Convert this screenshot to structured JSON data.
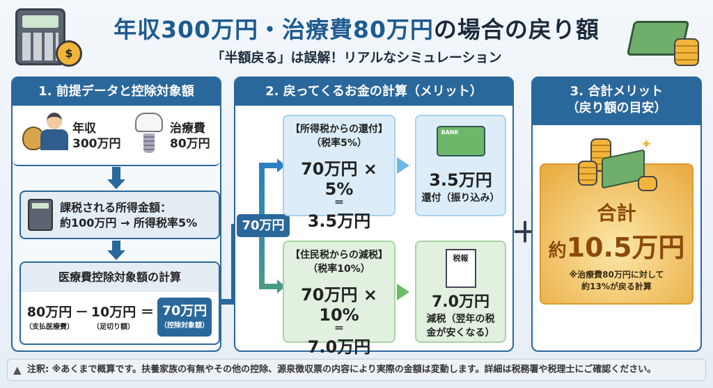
{
  "header": {
    "title_main": "年収300万円・治療費80万円",
    "title_tail": "の場合の戻り額",
    "subtitle": "「半額戻る」は誤解！リアルなシミュレーション"
  },
  "colors": {
    "primary": "#2a679b",
    "title": "#1e5b8f",
    "blue_box": "#dcedf9",
    "green_box": "#e1f0df",
    "gold": "#e8a93c"
  },
  "panel1": {
    "title": "1. 前提データと控除対象額",
    "income_label": "年収",
    "income_value": "300万円",
    "treatment_label": "治療費",
    "treatment_value": "80万円",
    "taxable_line1": "課税される所得金額：",
    "taxable_line2": "約100万円 → 所得税率5%",
    "calc_title": "医療費控除対象額の計算",
    "paid": "80万円",
    "paid_note": "（支払医療費）",
    "minus": "－",
    "threshold": "10万円",
    "threshold_note": "（足切り額）",
    "equals": "＝",
    "result": "70万円",
    "result_note": "（控除対象額）"
  },
  "panel2": {
    "title": "2. 戻ってくるお金の計算（メリット）",
    "badge": "70万円",
    "income_tax": {
      "title": "【所得税からの還付】",
      "rate": "（税率5%）",
      "formula": "70万円 × 5%",
      "eq": "＝",
      "result": "3.5万円"
    },
    "income_tax_result": {
      "card_label": "BANK",
      "value": "3.5万円",
      "desc": "還付（振り込み）"
    },
    "resident_tax": {
      "title": "【住民税からの減税】",
      "rate": "（税率10%）",
      "formula": "70万円 × 10%",
      "eq": "＝",
      "result": "7.0万円"
    },
    "resident_tax_result": {
      "doc_label": "税報",
      "value": "7.0万円",
      "desc1": "減税（翌年の税",
      "desc2": "金が安くなる）"
    }
  },
  "plus": "＋",
  "panel3": {
    "title1": "3. 合計メリット",
    "title2": "（戻り額の目安）",
    "total_label": "合計",
    "total_prefix": "約",
    "total_value": "10.5万円",
    "note1": "※治療費80万円に対して",
    "note2": "約13%が戻る計算"
  },
  "footer": {
    "note": "注釈: ※あくまで概算です。扶養家族の有無やその他の控除、源泉徴収票の内容により実際の金額は変動します。詳細は税務署や税理士にご確認ください。"
  },
  "icons": [
    "calculator-icon",
    "money-stack-icon",
    "money-bag-icon",
    "businessman-icon",
    "tooth-implant-icon",
    "bank-card-icon",
    "tax-document-icon",
    "coins-bills-icon",
    "warning-icon"
  ]
}
